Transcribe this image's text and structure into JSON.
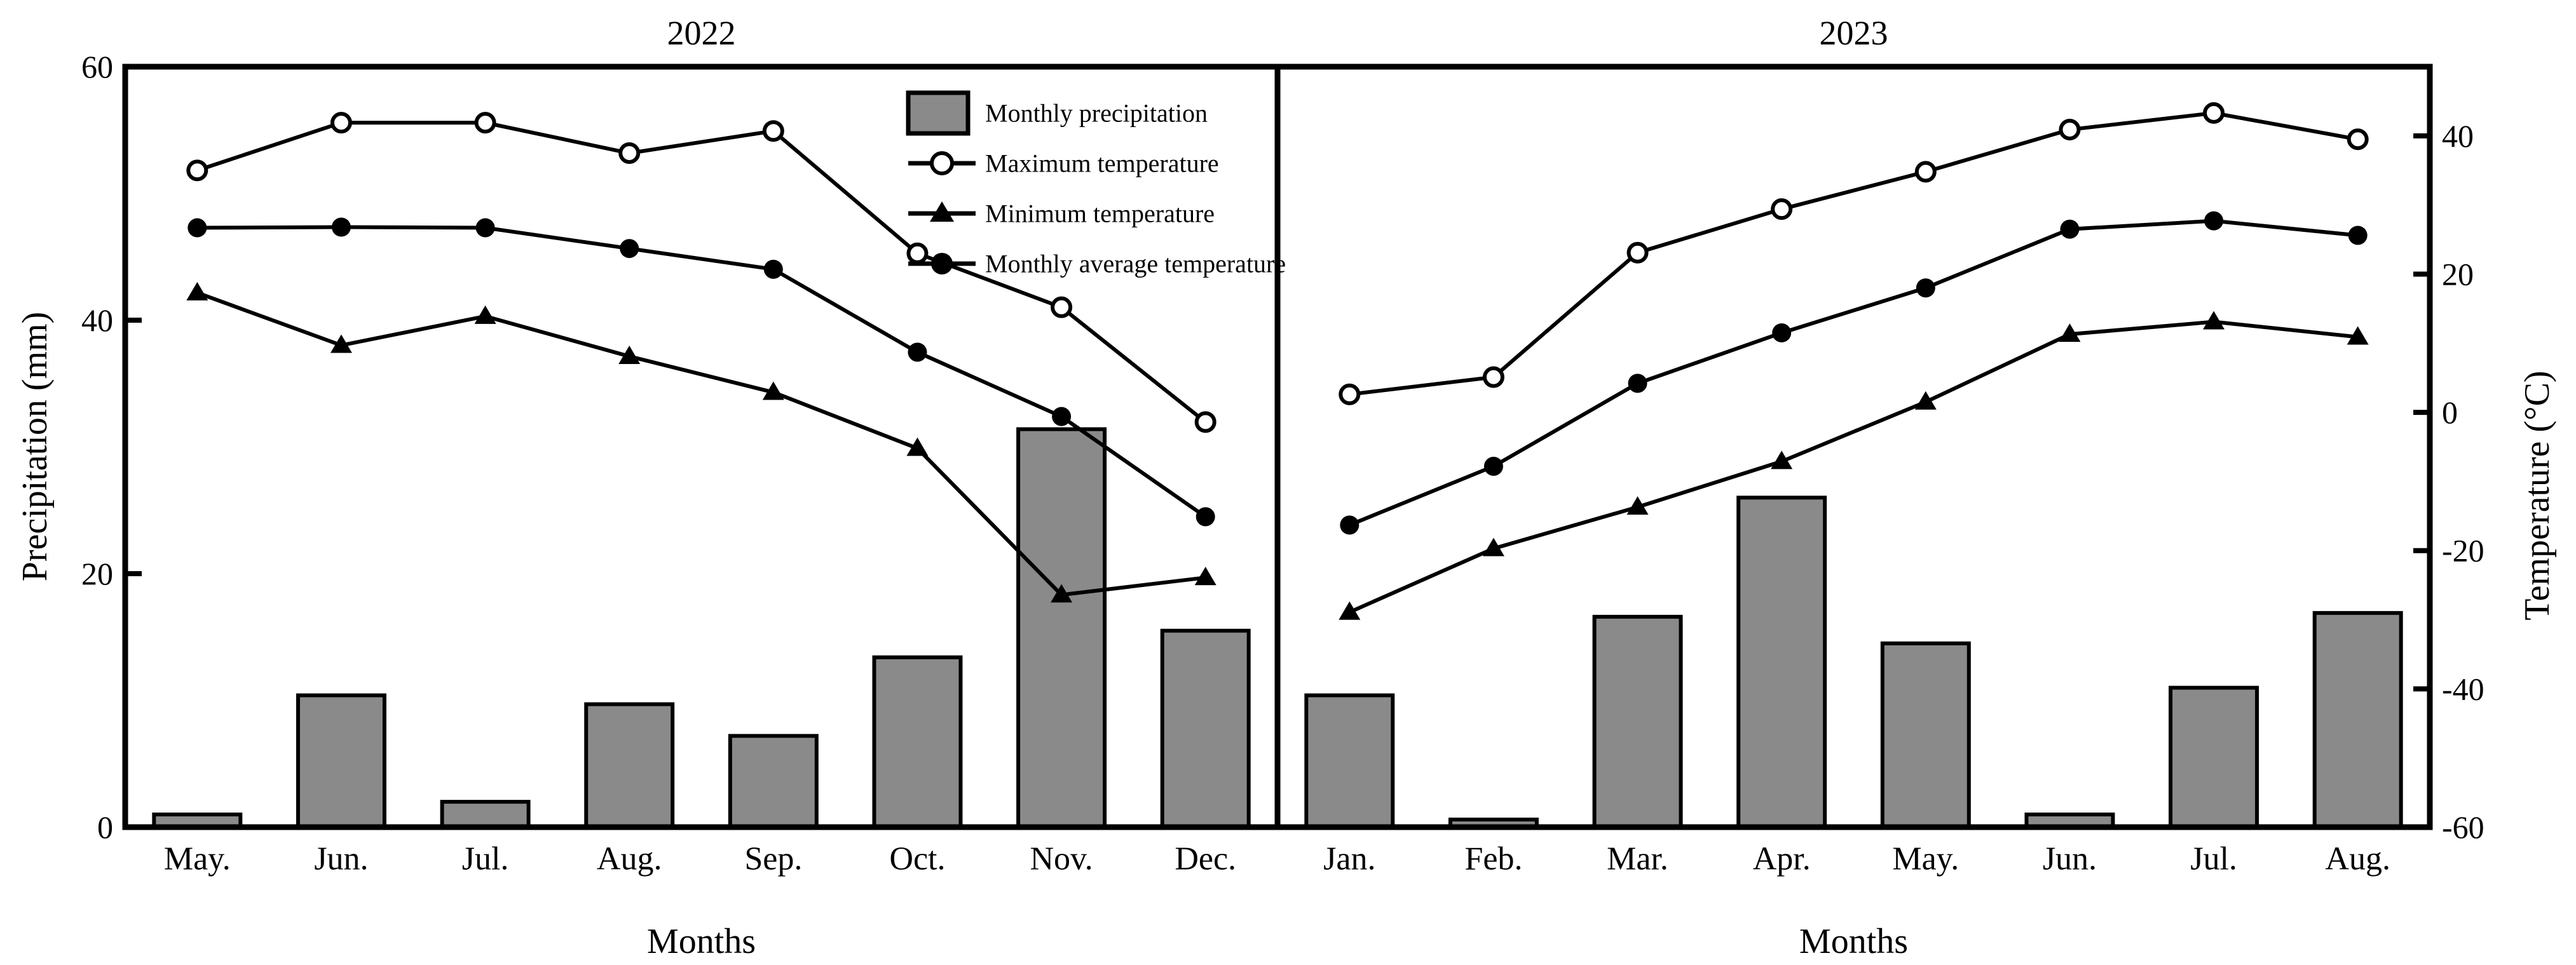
{
  "colors": {
    "bar_fill": "#8a8a8a",
    "stroke": "#000000",
    "background": "#ffffff"
  },
  "legend": {
    "items": [
      {
        "label": "Monthly precipitation",
        "marker": "bar"
      },
      {
        "label": "Maximum temperature",
        "marker": "open-circle"
      },
      {
        "label": "Minimum temperature",
        "marker": "filled-triangle"
      },
      {
        "label": "Monthly average temperature",
        "marker": "filled-circle"
      }
    ]
  },
  "axes": {
    "left": {
      "label": "Precipitation (mm)",
      "ticks": [
        0,
        20,
        40,
        60
      ],
      "range": [
        0,
        60
      ]
    },
    "right": {
      "label": "Temperature (°C)",
      "ticks": [
        40,
        20,
        0,
        -20,
        -40,
        -60
      ],
      "range": [
        -60,
        50
      ]
    }
  },
  "chart_data": [
    {
      "type": "bar+line",
      "title": "2022",
      "xlabel": "Months",
      "categories": [
        "May.",
        "Jun.",
        "Jul.",
        "Aug.",
        "Sep.",
        "Oct.",
        "Nov.",
        "Dec."
      ],
      "series": [
        {
          "name": "Monthly precipitation",
          "kind": "bar",
          "axis": "left",
          "values": [
            1.0,
            10.4,
            2.0,
            9.7,
            7.2,
            13.4,
            31.4,
            15.5
          ]
        },
        {
          "name": "Maximum temperature",
          "kind": "line",
          "marker": "open-circle",
          "axis": "right",
          "values": [
            35.0,
            41.9,
            41.9,
            37.5,
            40.7,
            23.0,
            15.2,
            -1.4
          ]
        },
        {
          "name": "Minimum temperature",
          "kind": "line",
          "marker": "filled-triangle",
          "axis": "right",
          "values": [
            17.3,
            9.7,
            13.9,
            8.1,
            2.9,
            -5.2,
            -26.4,
            -23.9
          ]
        },
        {
          "name": "Monthly average temperature",
          "kind": "line",
          "marker": "filled-circle",
          "axis": "right",
          "values": [
            26.7,
            26.8,
            26.7,
            23.7,
            20.7,
            8.7,
            -0.6,
            -15.1
          ]
        }
      ]
    },
    {
      "type": "bar+line",
      "title": "2023",
      "xlabel": "Months",
      "categories": [
        "Jan.",
        "Feb.",
        "Mar.",
        "Apr.",
        "May.",
        "Jun.",
        "Jul.",
        "Aug."
      ],
      "series": [
        {
          "name": "Monthly precipitation",
          "kind": "bar",
          "axis": "left",
          "values": [
            10.4,
            0.6,
            16.6,
            26.0,
            14.5,
            1.0,
            11.0,
            16.9
          ]
        },
        {
          "name": "Maximum temperature",
          "kind": "line",
          "marker": "open-circle",
          "axis": "right",
          "values": [
            2.6,
            5.1,
            23.1,
            29.4,
            34.8,
            40.9,
            43.3,
            39.5
          ]
        },
        {
          "name": "Minimum temperature",
          "kind": "line",
          "marker": "filled-triangle",
          "axis": "right",
          "values": [
            -28.9,
            -19.7,
            -13.7,
            -7.1,
            1.5,
            11.3,
            13.1,
            10.9
          ]
        },
        {
          "name": "Monthly average temperature",
          "kind": "line",
          "marker": "filled-circle",
          "axis": "right",
          "values": [
            -16.3,
            -7.8,
            4.2,
            11.5,
            18.0,
            26.5,
            27.7,
            25.6
          ]
        }
      ]
    }
  ]
}
